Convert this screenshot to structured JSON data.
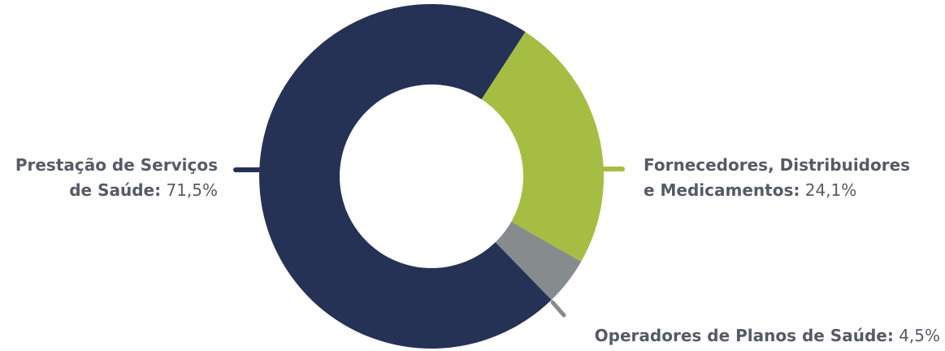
{
  "chart_data": {
    "type": "pie",
    "variant": "donut",
    "categories": [
      "Prestação de Serviços de Saúde:",
      "Fornecedores, Distribuidores e Medicamentos:",
      "Operadores de Planos de Saúde:"
    ],
    "values": [
      71.5,
      24.1,
      4.5
    ],
    "value_labels": [
      "71,5%",
      "24,1%",
      "4,5%"
    ],
    "colors": [
      "#253255",
      "#a5bd43",
      "#868b8e"
    ],
    "legend": "none",
    "label_placement": "outside with leader lines"
  },
  "labels": {
    "left": {
      "line1": "Prestação de Serviços",
      "line2": "de Saúde:",
      "value": "71,5%"
    },
    "right": {
      "line1": "Fornecedores, Distribuidores",
      "line2": "e Medicamentos:",
      "value": "24,1%"
    },
    "bottom": {
      "line1": "Operadores de Planos de Saúde:",
      "value": "4,5%"
    }
  }
}
